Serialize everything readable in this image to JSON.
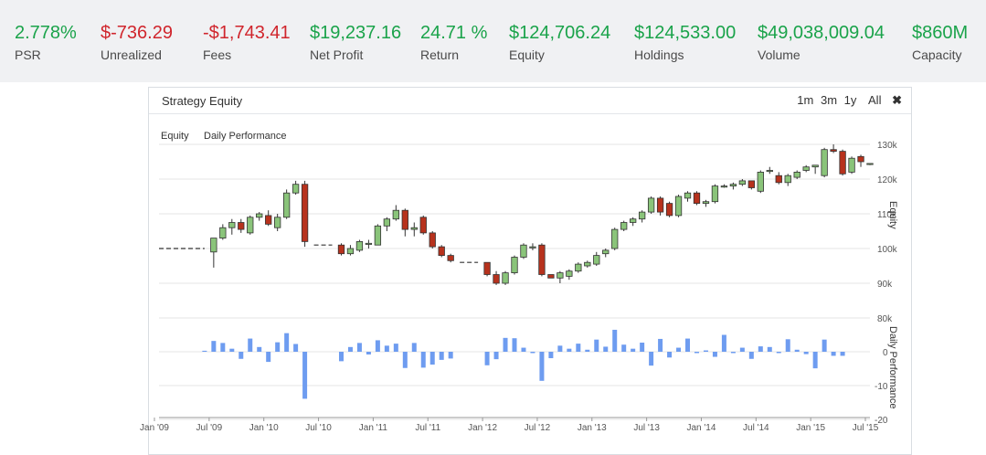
{
  "colors": {
    "positive": "#1aa34a",
    "negative": "#d0252c",
    "up_candle": "#8ac47a",
    "down_candle": "#b7321d",
    "bar": "#6e9cf0",
    "outline": "#333333"
  },
  "stats": [
    {
      "value": "2.778%",
      "label": "PSR",
      "tone": "positive"
    },
    {
      "value": "$-736.29",
      "label": "Unrealized",
      "tone": "negative"
    },
    {
      "value": "-$1,743.41",
      "label": "Fees",
      "tone": "negative"
    },
    {
      "value": "$19,237.16",
      "label": "Net Profit",
      "tone": "positive"
    },
    {
      "value": "24.71 %",
      "label": "Return",
      "tone": "positive"
    },
    {
      "value": "$124,706.24",
      "label": "Equity",
      "tone": "positive"
    },
    {
      "value": "$124,533.00",
      "label": "Holdings",
      "tone": "positive"
    },
    {
      "value": "$49,038,009.04",
      "label": "Volume",
      "tone": "positive"
    },
    {
      "value": "$860M",
      "label": "Capacity",
      "tone": "positive"
    }
  ],
  "panel": {
    "title": "Strategy Equity",
    "ranges": [
      "1m",
      "3m",
      "1y",
      "All"
    ],
    "close_icon": "close-icon"
  },
  "chart_data": {
    "type": "candlestick",
    "legend": [
      "Equity",
      "Daily Performance"
    ],
    "x_ticks": [
      "Jan '09",
      "Jul '09",
      "Jan '10",
      "Jul '10",
      "Jan '11",
      "Jul '11",
      "Jan '12",
      "Jul '12",
      "Jan '13",
      "Jul '13",
      "Jan '14",
      "Jul '14",
      "Jan '15",
      "Jul '15"
    ],
    "equity_axis": {
      "label": "Equity",
      "ticks": [
        "80k",
        "90k",
        "100k",
        "110k",
        "120k",
        "130k"
      ],
      "ylim": [
        80000,
        130000
      ]
    },
    "performance_axis": {
      "label": "Daily Performance",
      "ticks": [
        "-20",
        "-10",
        "0"
      ],
      "ylim": [
        -20,
        10
      ]
    },
    "flat_segments": [
      {
        "x_start": "2009-01",
        "x_end": "2009-06",
        "y": 100000
      },
      {
        "x_start": "2010-06",
        "x_end": "2010-08",
        "y": 101000
      },
      {
        "x_start": "2011-10",
        "x_end": "2011-12",
        "y": 96000
      }
    ],
    "candles": [
      {
        "x": "2009-07",
        "open": 99000,
        "high": 103000,
        "low": 94500,
        "close": 103000
      },
      {
        "x": "2009-08",
        "open": 103000,
        "high": 107000,
        "low": 102500,
        "close": 106000
      },
      {
        "x": "2009-09",
        "open": 106000,
        "high": 108500,
        "low": 104000,
        "close": 107500
      },
      {
        "x": "2009-10",
        "open": 107500,
        "high": 108500,
        "low": 104500,
        "close": 105500
      },
      {
        "x": "2009-11",
        "open": 104500,
        "high": 109500,
        "low": 104000,
        "close": 109000
      },
      {
        "x": "2009-12",
        "open": 109000,
        "high": 110500,
        "low": 108000,
        "close": 110000
      },
      {
        "x": "2010-01",
        "open": 109500,
        "high": 111000,
        "low": 106500,
        "close": 107000
      },
      {
        "x": "2010-02",
        "open": 106000,
        "high": 110000,
        "low": 105000,
        "close": 109000
      },
      {
        "x": "2010-03",
        "open": 109000,
        "high": 117000,
        "low": 108500,
        "close": 116000
      },
      {
        "x": "2010-04",
        "open": 116000,
        "high": 119500,
        "low": 115500,
        "close": 118500
      },
      {
        "x": "2010-05",
        "open": 118500,
        "high": 119500,
        "low": 100500,
        "close": 102000
      },
      {
        "x": "2010-09",
        "open": 101000,
        "high": 101500,
        "low": 98000,
        "close": 98500
      },
      {
        "x": "2010-10",
        "open": 98500,
        "high": 101000,
        "low": 98000,
        "close": 100000
      },
      {
        "x": "2010-11",
        "open": 99500,
        "high": 102500,
        "low": 99000,
        "close": 102000
      },
      {
        "x": "2010-12",
        "open": 101500,
        "high": 102500,
        "low": 100000,
        "close": 101500
      },
      {
        "x": "2011-01",
        "open": 101000,
        "high": 107000,
        "low": 101000,
        "close": 106500
      },
      {
        "x": "2011-02",
        "open": 106500,
        "high": 109000,
        "low": 105000,
        "close": 108500
      },
      {
        "x": "2011-03",
        "open": 108500,
        "high": 112500,
        "low": 108000,
        "close": 111000
      },
      {
        "x": "2011-04",
        "open": 111000,
        "high": 111500,
        "low": 103500,
        "close": 105500
      },
      {
        "x": "2011-05",
        "open": 105500,
        "high": 107500,
        "low": 103500,
        "close": 106000
      },
      {
        "x": "2011-06",
        "open": 109000,
        "high": 109500,
        "low": 104000,
        "close": 104500
      },
      {
        "x": "2011-07",
        "open": 104500,
        "high": 105000,
        "low": 100000,
        "close": 100500
      },
      {
        "x": "2011-08",
        "open": 100500,
        "high": 101000,
        "low": 97500,
        "close": 98000
      },
      {
        "x": "2011-09",
        "open": 98000,
        "high": 98500,
        "low": 96000,
        "close": 96500
      },
      {
        "x": "2012-01",
        "open": 96000,
        "high": 96000,
        "low": 92000,
        "close": 92500
      },
      {
        "x": "2012-02",
        "open": 92500,
        "high": 93500,
        "low": 89500,
        "close": 90000
      },
      {
        "x": "2012-03",
        "open": 90000,
        "high": 93500,
        "low": 89500,
        "close": 93000
      },
      {
        "x": "2012-04",
        "open": 93000,
        "high": 98000,
        "low": 92500,
        "close": 97500
      },
      {
        "x": "2012-05",
        "open": 97500,
        "high": 101500,
        "low": 97000,
        "close": 101000
      },
      {
        "x": "2012-06",
        "open": 100500,
        "high": 101500,
        "low": 99500,
        "close": 100500
      },
      {
        "x": "2012-07",
        "open": 101000,
        "high": 101500,
        "low": 92000,
        "close": 92500
      },
      {
        "x": "2012-08",
        "open": 92500,
        "high": 92500,
        "low": 91500,
        "close": 91500
      },
      {
        "x": "2012-09",
        "open": 91500,
        "high": 93500,
        "low": 90000,
        "close": 93000
      },
      {
        "x": "2012-10",
        "open": 92000,
        "high": 94000,
        "low": 91000,
        "close": 93500
      },
      {
        "x": "2012-11",
        "open": 93500,
        "high": 96000,
        "low": 93000,
        "close": 95500
      },
      {
        "x": "2012-12",
        "open": 95000,
        "high": 96500,
        "low": 94500,
        "close": 96000
      },
      {
        "x": "2013-01",
        "open": 95500,
        "high": 99000,
        "low": 95000,
        "close": 98000
      },
      {
        "x": "2013-02",
        "open": 98500,
        "high": 100000,
        "low": 97500,
        "close": 99500
      },
      {
        "x": "2013-03",
        "open": 100000,
        "high": 106000,
        "low": 99500,
        "close": 105500
      },
      {
        "x": "2013-04",
        "open": 105500,
        "high": 108000,
        "low": 105000,
        "close": 107500
      },
      {
        "x": "2013-05",
        "open": 107500,
        "high": 109000,
        "low": 106500,
        "close": 108500
      },
      {
        "x": "2013-06",
        "open": 108500,
        "high": 111000,
        "low": 107500,
        "close": 110500
      },
      {
        "x": "2013-07",
        "open": 110500,
        "high": 115000,
        "low": 110000,
        "close": 114500
      },
      {
        "x": "2013-08",
        "open": 114500,
        "high": 115000,
        "low": 109500,
        "close": 110500
      },
      {
        "x": "2013-09",
        "open": 113000,
        "high": 113500,
        "low": 109000,
        "close": 109500
      },
      {
        "x": "2013-10",
        "open": 109500,
        "high": 115500,
        "low": 109000,
        "close": 115000
      },
      {
        "x": "2013-11",
        "open": 114500,
        "high": 116500,
        "low": 113500,
        "close": 116000
      },
      {
        "x": "2013-12",
        "open": 116000,
        "high": 116500,
        "low": 112500,
        "close": 113000
      },
      {
        "x": "2014-01",
        "open": 113000,
        "high": 114000,
        "low": 112000,
        "close": 113500
      },
      {
        "x": "2014-02",
        "open": 113500,
        "high": 118500,
        "low": 113000,
        "close": 118000
      },
      {
        "x": "2014-03",
        "open": 118000,
        "high": 118500,
        "low": 117500,
        "close": 118000
      },
      {
        "x": "2014-04",
        "open": 118000,
        "high": 119000,
        "low": 117000,
        "close": 118500
      },
      {
        "x": "2014-05",
        "open": 118500,
        "high": 120000,
        "low": 118000,
        "close": 119500
      },
      {
        "x": "2014-06",
        "open": 119500,
        "high": 119500,
        "low": 117000,
        "close": 117500
      },
      {
        "x": "2014-07",
        "open": 116500,
        "high": 122500,
        "low": 116000,
        "close": 122000
      },
      {
        "x": "2014-08",
        "open": 122500,
        "high": 123500,
        "low": 121500,
        "close": 122500
      },
      {
        "x": "2014-09",
        "open": 121000,
        "high": 122000,
        "low": 118500,
        "close": 119000
      },
      {
        "x": "2014-10",
        "open": 119000,
        "high": 121500,
        "low": 118000,
        "close": 121000
      },
      {
        "x": "2014-11",
        "open": 120500,
        "high": 122500,
        "low": 120000,
        "close": 122000
      },
      {
        "x": "2014-12",
        "open": 122500,
        "high": 124000,
        "low": 122000,
        "close": 123500
      },
      {
        "x": "2015-01",
        "open": 123500,
        "high": 124000,
        "low": 121500,
        "close": 124000
      },
      {
        "x": "2015-02",
        "open": 121000,
        "high": 129000,
        "low": 120500,
        "close": 128500
      },
      {
        "x": "2015-03",
        "open": 128500,
        "high": 130000,
        "low": 127500,
        "close": 128000
      },
      {
        "x": "2015-04",
        "open": 128000,
        "high": 128500,
        "low": 121000,
        "close": 121500
      },
      {
        "x": "2015-05",
        "open": 122000,
        "high": 126500,
        "low": 121500,
        "close": 126000
      },
      {
        "x": "2015-06",
        "open": 126500,
        "high": 127000,
        "low": 123500,
        "close": 125000
      },
      {
        "x": "2015-07",
        "open": 124500,
        "high": 124500,
        "low": 124000,
        "close": 124500
      }
    ],
    "daily_performance": [
      {
        "x": "2009-06",
        "value": 0.3
      },
      {
        "x": "2009-07",
        "value": 3.2
      },
      {
        "x": "2009-08",
        "value": 2.6
      },
      {
        "x": "2009-09",
        "value": 0.9
      },
      {
        "x": "2009-10",
        "value": -2.1
      },
      {
        "x": "2009-11",
        "value": 3.9
      },
      {
        "x": "2009-12",
        "value": 1.4
      },
      {
        "x": "2010-01",
        "value": -3.0
      },
      {
        "x": "2010-02",
        "value": 2.8
      },
      {
        "x": "2010-03",
        "value": 5.5
      },
      {
        "x": "2010-04",
        "value": 2.3
      },
      {
        "x": "2010-05",
        "value": -13.9
      },
      {
        "x": "2010-09",
        "value": -2.8
      },
      {
        "x": "2010-10",
        "value": 1.4
      },
      {
        "x": "2010-11",
        "value": 2.6
      },
      {
        "x": "2010-12",
        "value": -0.8
      },
      {
        "x": "2011-01",
        "value": 3.4
      },
      {
        "x": "2011-02",
        "value": 1.8
      },
      {
        "x": "2011-03",
        "value": 2.4
      },
      {
        "x": "2011-04",
        "value": -4.8
      },
      {
        "x": "2011-05",
        "value": 2.6
      },
      {
        "x": "2011-06",
        "value": -4.7
      },
      {
        "x": "2011-07",
        "value": -3.8
      },
      {
        "x": "2011-08",
        "value": -2.4
      },
      {
        "x": "2011-09",
        "value": -2.0
      },
      {
        "x": "2012-01",
        "value": -4.0
      },
      {
        "x": "2012-02",
        "value": -2.2
      },
      {
        "x": "2012-03",
        "value": 4.1
      },
      {
        "x": "2012-04",
        "value": 4.0
      },
      {
        "x": "2012-05",
        "value": 1.2
      },
      {
        "x": "2012-06",
        "value": -0.4
      },
      {
        "x": "2012-07",
        "value": -8.6
      },
      {
        "x": "2012-08",
        "value": -1.9
      },
      {
        "x": "2012-09",
        "value": 1.8
      },
      {
        "x": "2012-10",
        "value": 0.9
      },
      {
        "x": "2012-11",
        "value": 2.4
      },
      {
        "x": "2012-12",
        "value": 0.6
      },
      {
        "x": "2013-01",
        "value": 3.6
      },
      {
        "x": "2013-02",
        "value": 1.5
      },
      {
        "x": "2013-03",
        "value": 6.5
      },
      {
        "x": "2013-04",
        "value": 2.1
      },
      {
        "x": "2013-05",
        "value": 0.9
      },
      {
        "x": "2013-06",
        "value": 2.7
      },
      {
        "x": "2013-07",
        "value": -4.1
      },
      {
        "x": "2013-08",
        "value": 3.8
      },
      {
        "x": "2013-09",
        "value": -1.7
      },
      {
        "x": "2013-10",
        "value": 1.2
      },
      {
        "x": "2013-11",
        "value": 3.9
      },
      {
        "x": "2013-12",
        "value": -0.4
      },
      {
        "x": "2014-01",
        "value": 0.4
      },
      {
        "x": "2014-02",
        "value": -1.5
      },
      {
        "x": "2014-03",
        "value": 5.0
      },
      {
        "x": "2014-04",
        "value": -0.4
      },
      {
        "x": "2014-05",
        "value": 1.2
      },
      {
        "x": "2014-06",
        "value": -2.1
      },
      {
        "x": "2014-07",
        "value": 1.6
      },
      {
        "x": "2014-08",
        "value": 1.4
      },
      {
        "x": "2014-09",
        "value": -0.4
      },
      {
        "x": "2014-10",
        "value": 3.7
      },
      {
        "x": "2014-11",
        "value": 0.6
      },
      {
        "x": "2014-12",
        "value": -0.7
      },
      {
        "x": "2015-01",
        "value": -4.9
      },
      {
        "x": "2015-02",
        "value": 3.6
      },
      {
        "x": "2015-03",
        "value": -1.2
      },
      {
        "x": "2015-04",
        "value": -1.2
      }
    ]
  }
}
